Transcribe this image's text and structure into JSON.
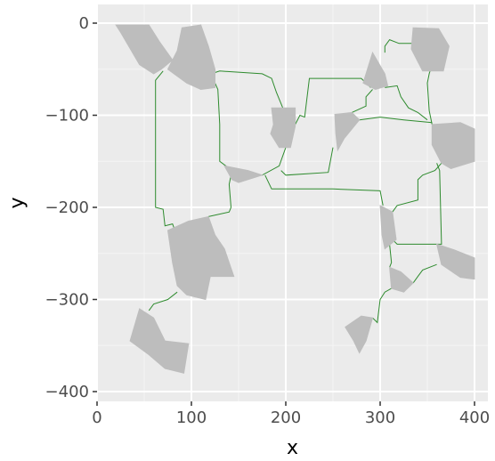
{
  "chart_data": {
    "type": "scatter",
    "title": "",
    "xlabel": "x",
    "ylabel": "y",
    "xlim": [
      0,
      400
    ],
    "ylim": [
      -400,
      0
    ],
    "x_ticks": [
      "0",
      "100",
      "200",
      "300",
      "400"
    ],
    "y_ticks": [
      "0",
      "-100",
      "-200",
      "-300",
      "-400"
    ],
    "grid": true,
    "legend": "none",
    "colors": {
      "panel": "#ebebeb",
      "grid_major": "#ffffff",
      "grid_minor": "#f5f5f5",
      "polygon_fill": "#bdbdbd",
      "path_line": "#2e8b2e"
    },
    "polygons": [
      {
        "name": "region-1",
        "points": [
          [
            20,
            -2
          ],
          [
            55,
            -2
          ],
          [
            66,
            -20
          ],
          [
            80,
            -40
          ],
          [
            68,
            -50
          ],
          [
            60,
            -55
          ],
          [
            45,
            -45
          ],
          [
            25,
            -10
          ]
        ]
      },
      {
        "name": "region-2",
        "points": [
          [
            90,
            -5
          ],
          [
            110,
            -2
          ],
          [
            118,
            -25
          ],
          [
            125,
            -50
          ],
          [
            125,
            -70
          ],
          [
            110,
            -72
          ],
          [
            95,
            -65
          ],
          [
            75,
            -50
          ],
          [
            85,
            -30
          ]
        ]
      },
      {
        "name": "region-3",
        "points": [
          [
            185,
            -92
          ],
          [
            210,
            -92
          ],
          [
            210,
            -112
          ],
          [
            205,
            -135
          ],
          [
            193,
            -135
          ],
          [
            184,
            -120
          ],
          [
            187,
            -110
          ]
        ]
      },
      {
        "name": "region-4",
        "points": [
          [
            252,
            -99
          ],
          [
            270,
            -97
          ],
          [
            278,
            -105
          ],
          [
            262,
            -125
          ],
          [
            255,
            -138
          ],
          [
            253,
            -120
          ]
        ]
      },
      {
        "name": "region-5",
        "points": [
          [
            292,
            -32
          ],
          [
            305,
            -55
          ],
          [
            308,
            -68
          ],
          [
            295,
            -72
          ],
          [
            282,
            -65
          ]
        ]
      },
      {
        "name": "region-6",
        "points": [
          [
            335,
            -5
          ],
          [
            362,
            -6
          ],
          [
            373,
            -25
          ],
          [
            367,
            -52
          ],
          [
            345,
            -52
          ],
          [
            333,
            -28
          ]
        ]
      },
      {
        "name": "region-7",
        "points": [
          [
            355,
            -110
          ],
          [
            385,
            -108
          ],
          [
            400,
            -115
          ],
          [
            400,
            -150
          ],
          [
            375,
            -158
          ],
          [
            365,
            -152
          ],
          [
            355,
            -132
          ]
        ]
      },
      {
        "name": "region-8",
        "points": [
          [
            135,
            -155
          ],
          [
            160,
            -160
          ],
          [
            175,
            -165
          ],
          [
            150,
            -173
          ],
          [
            143,
            -170
          ]
        ]
      },
      {
        "name": "region-9",
        "points": [
          [
            300,
            -198
          ],
          [
            313,
            -205
          ],
          [
            317,
            -235
          ],
          [
            305,
            -245
          ],
          [
            302,
            -230
          ]
        ]
      },
      {
        "name": "region-10",
        "points": [
          [
            75,
            -225
          ],
          [
            97,
            -215
          ],
          [
            118,
            -210
          ],
          [
            125,
            -230
          ],
          [
            135,
            -245
          ],
          [
            145,
            -275
          ],
          [
            120,
            -275
          ],
          [
            115,
            -300
          ],
          [
            95,
            -295
          ],
          [
            85,
            -285
          ],
          [
            80,
            -260
          ]
        ]
      },
      {
        "name": "region-11",
        "points": [
          [
            360,
            -240
          ],
          [
            378,
            -246
          ],
          [
            400,
            -255
          ],
          [
            400,
            -278
          ],
          [
            385,
            -276
          ],
          [
            365,
            -262
          ]
        ]
      },
      {
        "name": "region-12",
        "points": [
          [
            310,
            -265
          ],
          [
            322,
            -270
          ],
          [
            335,
            -282
          ],
          [
            325,
            -292
          ],
          [
            312,
            -288
          ]
        ]
      },
      {
        "name": "region-13",
        "points": [
          [
            263,
            -330
          ],
          [
            280,
            -318
          ],
          [
            292,
            -320
          ],
          [
            285,
            -345
          ],
          [
            278,
            -358
          ],
          [
            272,
            -345
          ]
        ]
      },
      {
        "name": "region-14",
        "points": [
          [
            45,
            -310
          ],
          [
            60,
            -320
          ],
          [
            72,
            -345
          ],
          [
            97,
            -348
          ],
          [
            92,
            -380
          ],
          [
            72,
            -375
          ],
          [
            55,
            -360
          ],
          [
            35,
            -345
          ]
        ]
      }
    ],
    "paths": [
      {
        "name": "path-1",
        "points": [
          [
            70,
            -52
          ],
          [
            62,
            -62
          ],
          [
            62,
            -200
          ],
          [
            70,
            -202
          ],
          [
            72,
            -220
          ],
          [
            80,
            -218
          ],
          [
            85,
            -232
          ]
        ]
      },
      {
        "name": "path-2",
        "points": [
          [
            112,
            -58
          ],
          [
            130,
            -52
          ],
          [
            175,
            -55
          ],
          [
            185,
            -60
          ],
          [
            190,
            -75
          ],
          [
            198,
            -95
          ]
        ]
      },
      {
        "name": "path-3",
        "points": [
          [
            125,
            -65
          ],
          [
            128,
            -72
          ],
          [
            130,
            -110
          ],
          [
            130,
            -150
          ],
          [
            143,
            -160
          ],
          [
            140,
            -175
          ],
          [
            142,
            -200
          ],
          [
            140,
            -205
          ],
          [
            118,
            -210
          ]
        ]
      },
      {
        "name": "path-4",
        "points": [
          [
            178,
            -165
          ],
          [
            185,
            -180
          ],
          [
            250,
            -180
          ],
          [
            300,
            -182
          ],
          [
            303,
            -198
          ]
        ]
      },
      {
        "name": "path-5",
        "points": [
          [
            200,
            -135
          ],
          [
            193,
            -155
          ],
          [
            175,
            -165
          ],
          [
            160,
            -165
          ]
        ]
      },
      {
        "name": "path-6",
        "points": [
          [
            250,
            -135
          ],
          [
            245,
            -162
          ],
          [
            200,
            -165
          ],
          [
            195,
            -160
          ]
        ]
      },
      {
        "name": "path-7",
        "points": [
          [
            278,
            -105
          ],
          [
            300,
            -102
          ],
          [
            325,
            -105
          ],
          [
            355,
            -108
          ]
        ]
      },
      {
        "name": "path-8",
        "points": [
          [
            210,
            -110
          ],
          [
            215,
            -100
          ],
          [
            220,
            -102
          ],
          [
            225,
            -60
          ],
          [
            280,
            -60
          ],
          [
            290,
            -70
          ]
        ]
      },
      {
        "name": "path-9",
        "points": [
          [
            270,
            -97
          ],
          [
            285,
            -90
          ],
          [
            285,
            -80
          ],
          [
            292,
            -72
          ]
        ]
      },
      {
        "name": "path-10",
        "points": [
          [
            305,
            -70
          ],
          [
            318,
            -68
          ],
          [
            322,
            -80
          ],
          [
            330,
            -92
          ],
          [
            340,
            -97
          ],
          [
            350,
            -105
          ]
        ]
      },
      {
        "name": "path-11",
        "points": [
          [
            335,
            -22
          ],
          [
            320,
            -22
          ],
          [
            310,
            -18
          ],
          [
            305,
            -25
          ],
          [
            305,
            -32
          ]
        ]
      },
      {
        "name": "path-12",
        "points": [
          [
            362,
            -48
          ],
          [
            355,
            -45
          ],
          [
            352,
            -55
          ],
          [
            350,
            -65
          ],
          [
            352,
            -95
          ],
          [
            355,
            -110
          ]
        ]
      },
      {
        "name": "path-13",
        "points": [
          [
            365,
            -152
          ],
          [
            358,
            -160
          ],
          [
            345,
            -165
          ],
          [
            340,
            -170
          ],
          [
            340,
            -192
          ],
          [
            318,
            -198
          ],
          [
            313,
            -205
          ]
        ]
      },
      {
        "name": "path-14",
        "points": [
          [
            360,
            -152
          ],
          [
            363,
            -160
          ],
          [
            365,
            -240
          ],
          [
            360,
            -240
          ]
        ]
      },
      {
        "name": "path-15",
        "points": [
          [
            313,
            -235
          ],
          [
            318,
            -240
          ],
          [
            350,
            -240
          ],
          [
            360,
            -240
          ]
        ]
      },
      {
        "name": "path-16",
        "points": [
          [
            310,
            -240
          ],
          [
            312,
            -260
          ],
          [
            310,
            -265
          ]
        ]
      },
      {
        "name": "path-17",
        "points": [
          [
            360,
            -262
          ],
          [
            345,
            -268
          ],
          [
            340,
            -275
          ],
          [
            335,
            -282
          ]
        ]
      },
      {
        "name": "path-18",
        "points": [
          [
            312,
            -288
          ],
          [
            305,
            -292
          ],
          [
            300,
            -300
          ],
          [
            297,
            -325
          ],
          [
            292,
            -320
          ]
        ]
      },
      {
        "name": "path-19",
        "points": [
          [
            85,
            -292
          ],
          [
            75,
            -300
          ],
          [
            60,
            -305
          ],
          [
            55,
            -312
          ]
        ]
      }
    ]
  }
}
